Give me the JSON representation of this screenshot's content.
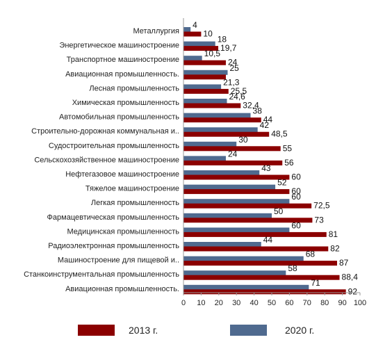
{
  "chart_data": {
    "type": "bar",
    "orientation": "horizontal",
    "categories": [
      "Металлургия",
      "Энергетическое машиностроение",
      "Транспортное машиностроение",
      "Авиационная промышленность.",
      "Лесная промышленность",
      "Химическая промышленность",
      "Автомобильная промышленность",
      "Строительно-дорожная коммунальная и..",
      "Судостроительная промышленность",
      "Сельскохозяйственное машиностроение",
      "Нефтегазовое машиностроение",
      "Тяжелое машиностроение",
      "Легкая промышленность",
      "Фармацевтическая промышленность",
      "Медицинская промышленность",
      "Радиоэлектронная промышленность",
      "Машиностроение для пищевой и..",
      "Станкоинструментальная промышленность",
      "Авиационная промышленность."
    ],
    "series": [
      {
        "name": "2013 г.",
        "color": "#8B0000",
        "values": [
          10,
          19.7,
          24,
          24,
          25.5,
          32.4,
          44,
          48.5,
          55,
          56,
          60,
          60,
          72.5,
          73,
          81,
          82,
          87,
          88.4,
          92
        ],
        "labels": [
          "10",
          "19,7",
          "24",
          "",
          "25,5",
          "32,4",
          "44",
          "48,5",
          "55",
          "56",
          "60",
          "60",
          "72,5",
          "73",
          "81",
          "82",
          "87",
          "88,4",
          "92"
        ]
      },
      {
        "name": "2020 г.",
        "color": "#4F6A8F",
        "values": [
          4,
          18,
          10.5,
          25,
          21.3,
          24.6,
          38,
          42,
          30,
          24,
          43,
          52,
          60,
          50,
          60,
          44,
          68,
          58,
          71
        ],
        "labels": [
          "4",
          "18",
          "10,5",
          "25",
          "21,3",
          "24,6",
          "38",
          "42",
          "30",
          "24",
          "43",
          "52",
          "60",
          "50",
          "60",
          "44",
          "68",
          "58",
          "71"
        ]
      }
    ],
    "xlim": [
      0,
      100
    ],
    "xticks": [
      "0",
      "10",
      "20",
      "30",
      "40",
      "50",
      "60",
      "70",
      "80",
      "90",
      "100"
    ],
    "title": "",
    "xlabel": "",
    "ylabel": "",
    "grid": false,
    "legend": {
      "position": "bottom",
      "entries": [
        "2013 г.",
        "2020 г."
      ]
    }
  }
}
